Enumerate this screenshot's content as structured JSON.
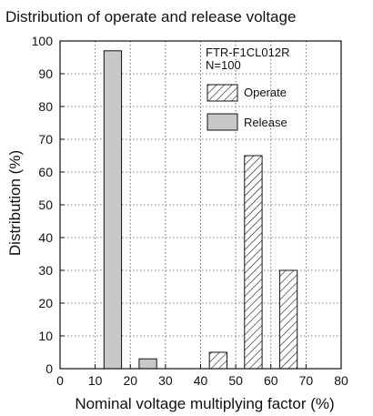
{
  "chart_data": {
    "type": "bar",
    "title": "Distribution of operate and release voltage",
    "xlabel": "Nominal voltage multiplying factor (%)",
    "ylabel": "Distribution (%)",
    "xlim": [
      0,
      80
    ],
    "ylim": [
      0,
      100
    ],
    "x_ticks": [
      "0",
      "10",
      "20",
      "30",
      "40",
      "50",
      "60",
      "70",
      "80"
    ],
    "y_ticks": [
      "0",
      "10",
      "20",
      "30",
      "40",
      "50",
      "60",
      "70",
      "80",
      "90",
      "100"
    ],
    "grid": true,
    "legend_position": "top-right",
    "annotation": [
      "FTR-F1CL012R",
      "N=100"
    ],
    "series": [
      {
        "name": "Operate",
        "pattern": "hatched",
        "bars": [
          {
            "x_start": 42.5,
            "x_end": 47.5,
            "value": 5
          },
          {
            "x_start": 52.5,
            "x_end": 57.5,
            "value": 65
          },
          {
            "x_start": 62.5,
            "x_end": 67.5,
            "value": 30
          }
        ]
      },
      {
        "name": "Release",
        "color": "#c8c8c8",
        "bars": [
          {
            "x_start": 12.5,
            "x_end": 17.5,
            "value": 97
          },
          {
            "x_start": 22.5,
            "x_end": 27.5,
            "value": 3
          }
        ]
      }
    ]
  }
}
